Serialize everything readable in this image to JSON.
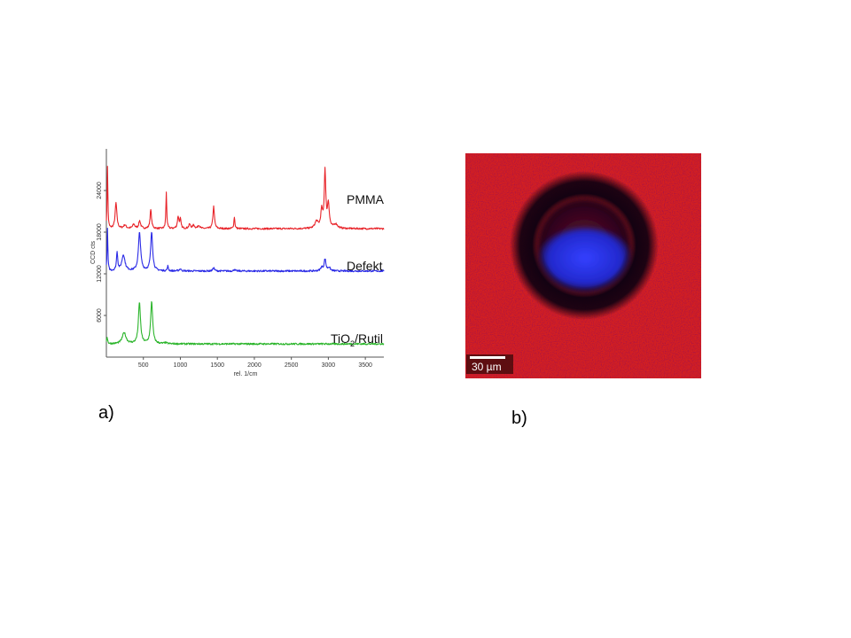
{
  "chart_data": {
    "type": "line",
    "xlabel": "rel. 1/cm",
    "ylabel": "CCD cts",
    "xlim": [
      0,
      3750
    ],
    "ylim": [
      0,
      30000
    ],
    "x_ticks": [
      500,
      1000,
      1500,
      2000,
      2500,
      3000,
      3500
    ],
    "y_ticks": [
      6000,
      12000,
      18000,
      24000
    ],
    "grid": false,
    "series": [
      {
        "name": "PMMA",
        "color": "#e8242a",
        "baseline": 18500,
        "peaks": [
          {
            "x": 15,
            "h": 9000,
            "w": 6
          },
          {
            "x": 130,
            "h": 3700,
            "w": 14
          },
          {
            "x": 250,
            "h": 500,
            "w": 20
          },
          {
            "x": 370,
            "h": 600,
            "w": 18
          },
          {
            "x": 450,
            "h": 1100,
            "w": 15
          },
          {
            "x": 600,
            "h": 2700,
            "w": 12
          },
          {
            "x": 810,
            "h": 5200,
            "w": 7
          },
          {
            "x": 970,
            "h": 1700,
            "w": 12
          },
          {
            "x": 1000,
            "h": 1300,
            "w": 10
          },
          {
            "x": 1125,
            "h": 600,
            "w": 15
          },
          {
            "x": 1180,
            "h": 500,
            "w": 15
          },
          {
            "x": 1250,
            "h": 500,
            "w": 15
          },
          {
            "x": 1450,
            "h": 3200,
            "w": 12
          },
          {
            "x": 1730,
            "h": 1700,
            "w": 8
          },
          {
            "x": 2840,
            "h": 1000,
            "w": 25
          },
          {
            "x": 2910,
            "h": 2500,
            "w": 15
          },
          {
            "x": 2955,
            "h": 8200,
            "w": 12
          },
          {
            "x": 3000,
            "h": 3500,
            "w": 15
          },
          {
            "x": 3100,
            "h": 600,
            "w": 30
          }
        ]
      },
      {
        "name": "Defekt",
        "color": "#2a2ae6",
        "baseline": 12400,
        "peaks": [
          {
            "x": 15,
            "h": 6000,
            "w": 6
          },
          {
            "x": 145,
            "h": 2700,
            "w": 10
          },
          {
            "x": 230,
            "h": 2300,
            "w": 25
          },
          {
            "x": 448,
            "h": 5500,
            "w": 18
          },
          {
            "x": 612,
            "h": 5600,
            "w": 16
          },
          {
            "x": 830,
            "h": 700,
            "w": 8
          },
          {
            "x": 1000,
            "h": 300,
            "w": 15
          },
          {
            "x": 1450,
            "h": 500,
            "w": 12
          },
          {
            "x": 1730,
            "h": 250,
            "w": 10
          },
          {
            "x": 2910,
            "h": 500,
            "w": 18
          },
          {
            "x": 2955,
            "h": 1700,
            "w": 14
          },
          {
            "x": 3010,
            "h": 500,
            "w": 18
          }
        ]
      },
      {
        "name": "TiO2/Rutil",
        "color": "#2cb52c",
        "baseline": 1900,
        "peaks": [
          {
            "x": 10,
            "h": 1000,
            "w": 8
          },
          {
            "x": 240,
            "h": 1600,
            "w": 30
          },
          {
            "x": 447,
            "h": 5900,
            "w": 17
          },
          {
            "x": 612,
            "h": 6100,
            "w": 16
          },
          {
            "x": 800,
            "h": 150,
            "w": 20
          }
        ]
      }
    ],
    "labels": [
      {
        "base": "PMMA",
        "sub": "",
        "tail": ""
      },
      {
        "base": "Defekt",
        "sub": "",
        "tail": ""
      },
      {
        "base": "TiO",
        "sub": "2",
        "tail": "/Rutil"
      }
    ]
  },
  "panel_a_label": "a)",
  "panel_b_label": "b)",
  "image": {
    "background_color": "#d42020",
    "ring_color": "#0a0010",
    "core_color": "#2a30e6",
    "scale_bar_label": "30 µm"
  }
}
